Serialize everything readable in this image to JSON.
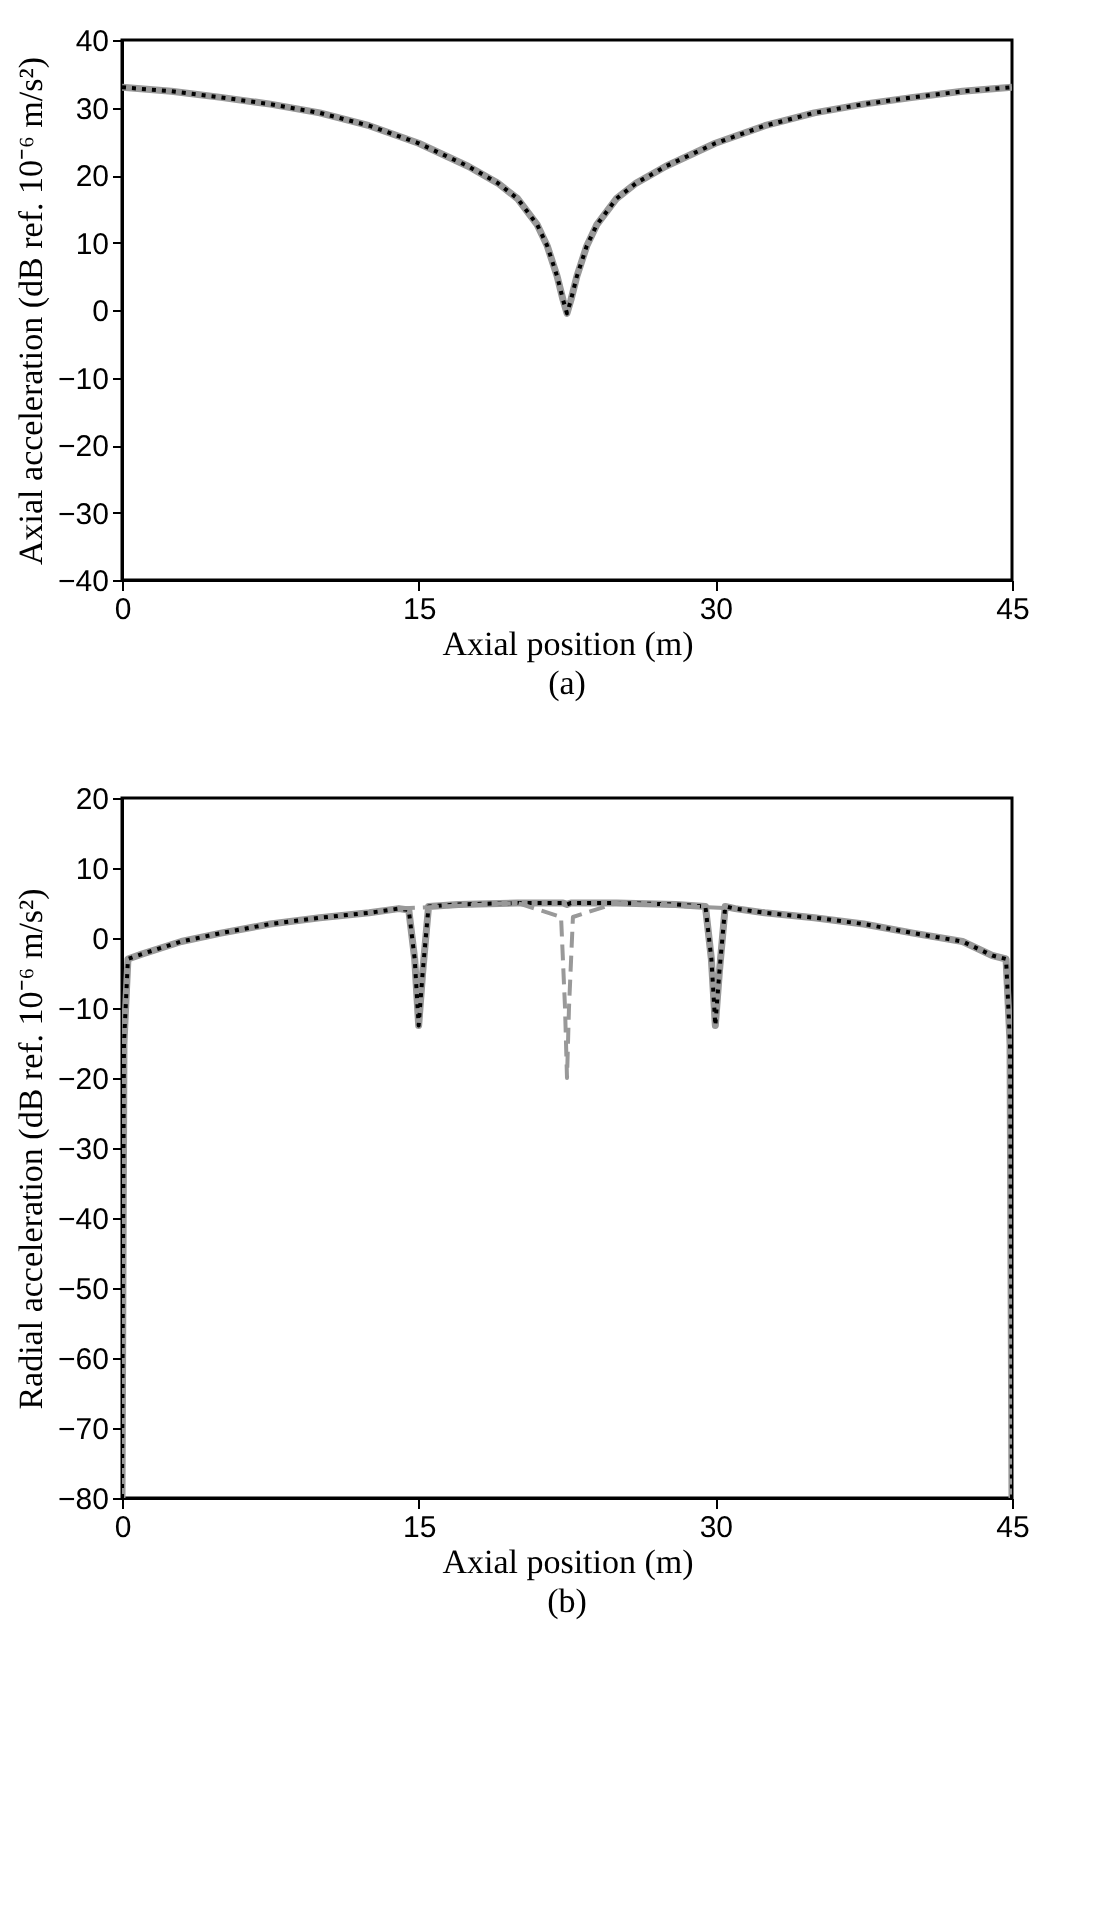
{
  "chart_data": [
    {
      "type": "line",
      "xlabel": "Axial position (m)",
      "ylabel": "Axial acceleration (dB ref. 10⁻⁶ m/s²)",
      "annotations": [
        "(a)"
      ],
      "xlim": [
        0,
        45
      ],
      "xticks": [
        0,
        15,
        30,
        45
      ],
      "ylim": [
        -40,
        40
      ],
      "yticks": [
        -40,
        -30,
        -20,
        -10,
        0,
        10,
        20,
        30,
        40
      ],
      "grid": false,
      "legend": false,
      "x": [
        0,
        2.5,
        5,
        7.5,
        10,
        12.5,
        15,
        17.5,
        19,
        20,
        21,
        21.5,
        22,
        22.3,
        22.5,
        22.7,
        23,
        23.5,
        24,
        25,
        26,
        27.5,
        30,
        32.5,
        35,
        37.5,
        40,
        42.5,
        45
      ],
      "series": [
        {
          "color": "#999999",
          "line_style": "solid",
          "values": [
            33,
            32.4,
            31.5,
            30.5,
            29.2,
            27.3,
            24.7,
            21.3,
            18.8,
            16.5,
            12.6,
            9.5,
            5,
            1.5,
            -0.5,
            1.5,
            5,
            9.5,
            12.6,
            16.5,
            18.8,
            21.3,
            24.7,
            27.3,
            29.2,
            30.5,
            31.5,
            32.4,
            33
          ]
        },
        {
          "color": "#000000",
          "line_style": "dotted",
          "values": [
            33,
            32.4,
            31.5,
            30.5,
            29.2,
            27.3,
            24.7,
            21.3,
            18.8,
            16.5,
            12.6,
            9.5,
            5,
            1.5,
            -0.5,
            1.5,
            5,
            9.5,
            12.6,
            16.5,
            18.8,
            21.3,
            24.7,
            27.3,
            29.2,
            30.5,
            31.5,
            32.4,
            33
          ]
        }
      ]
    },
    {
      "type": "line",
      "xlabel": "Axial position (m)",
      "ylabel": "Radial acceleration (dB ref. 10⁻⁶ m/s²)",
      "annotations": [
        "(b)"
      ],
      "xlim": [
        0,
        45
      ],
      "xticks": [
        0,
        15,
        30,
        45
      ],
      "ylim": [
        -80,
        20
      ],
      "yticks": [
        -80,
        -70,
        -60,
        -50,
        -40,
        -30,
        -20,
        -10,
        0,
        10,
        20
      ],
      "grid": false,
      "legend": false,
      "x": [
        0,
        0.1,
        0.3,
        1,
        3,
        5,
        7.5,
        10,
        12.5,
        14,
        14.5,
        14.8,
        15,
        15.2,
        15.5,
        17,
        20,
        22.3,
        22.5,
        22.7,
        25,
        28,
        29.5,
        29.8,
        30,
        30.2,
        30.5,
        31,
        32.5,
        35,
        37.5,
        40,
        42.5,
        44,
        44.7,
        44.9,
        45
      ],
      "series": [
        {
          "color": "#999999",
          "line_style": "solid",
          "values": [
            -80,
            -15,
            -3,
            -2.3,
            -0.5,
            0.7,
            2,
            2.9,
            3.6,
            4.2,
            4,
            -3,
            -12.5,
            -5,
            4.5,
            4.8,
            5,
            5,
            4.8,
            5,
            5,
            4.8,
            4.5,
            -3,
            -12.5,
            -5,
            4.5,
            4.2,
            3.6,
            2.9,
            2,
            0.7,
            -0.5,
            -2.5,
            -3,
            -15,
            -80
          ]
        },
        {
          "color": "#000000",
          "line_style": "dotted",
          "values": [
            -80,
            -15,
            -3,
            -2.3,
            -0.5,
            0.7,
            2,
            2.9,
            3.6,
            4.2,
            4,
            -3,
            -12.5,
            -5,
            4.5,
            4.8,
            5,
            5,
            4.8,
            5,
            5,
            4.8,
            4.5,
            -3,
            -12.5,
            -5,
            4.5,
            4.2,
            3.6,
            2.9,
            2,
            0.7,
            -0.5,
            -2.5,
            -3,
            -15,
            -80
          ]
        },
        {
          "color": "#999999",
          "line_style": "dashed",
          "x": [
            14,
            20,
            22.2,
            22.4,
            22.5,
            22.6,
            22.8,
            25,
            31
          ],
          "values": [
            4.2,
            5,
            3,
            -10,
            -20,
            -10,
            3,
            5,
            4.2
          ]
        }
      ]
    }
  ]
}
